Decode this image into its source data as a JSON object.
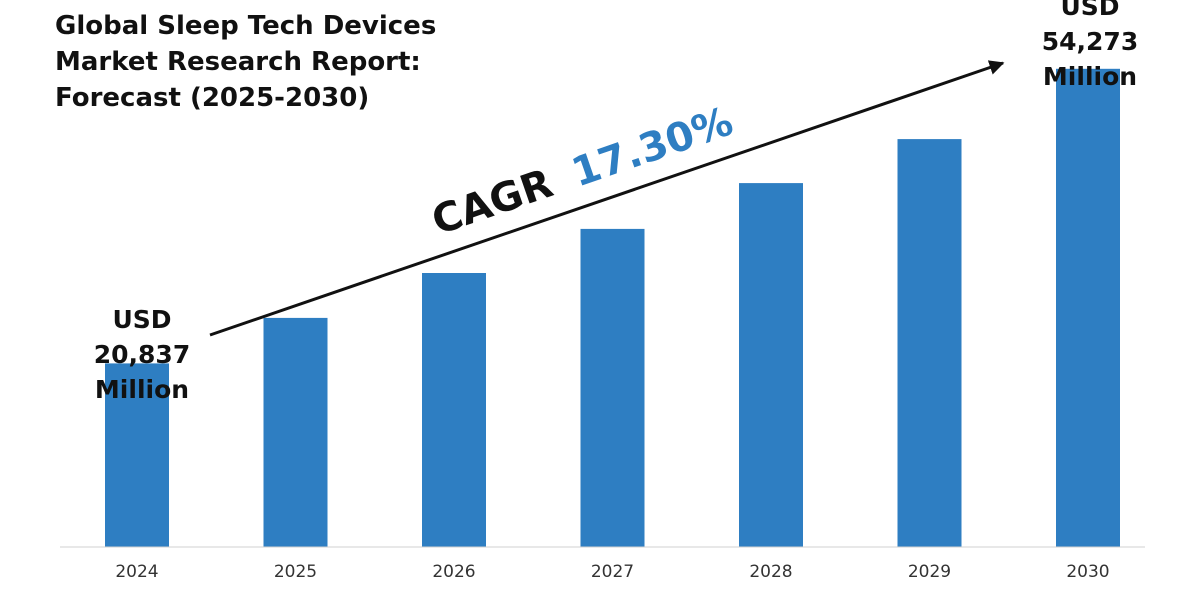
{
  "chart_data": {
    "type": "bar",
    "title_lines": [
      "Global Sleep Tech Devices",
      "Market Research Report:",
      "Forecast (2025-2030)"
    ],
    "categories": [
      "2024",
      "2025",
      "2026",
      "2027",
      "2028",
      "2029",
      "2030"
    ],
    "values": [
      20837,
      26000,
      31100,
      36100,
      41300,
      46300,
      54273
    ],
    "ylim": [
      0,
      58000
    ],
    "grid": false,
    "bar_color": "#2e7ec2",
    "annotations": {
      "start": {
        "lines": [
          "USD",
          "20,837",
          "Million"
        ]
      },
      "end": {
        "lines": [
          "USD",
          "54,273",
          "Million"
        ]
      },
      "cagr": {
        "label": "CAGR",
        "value": "17.30%",
        "value_color": "#2e7ec2"
      }
    }
  }
}
